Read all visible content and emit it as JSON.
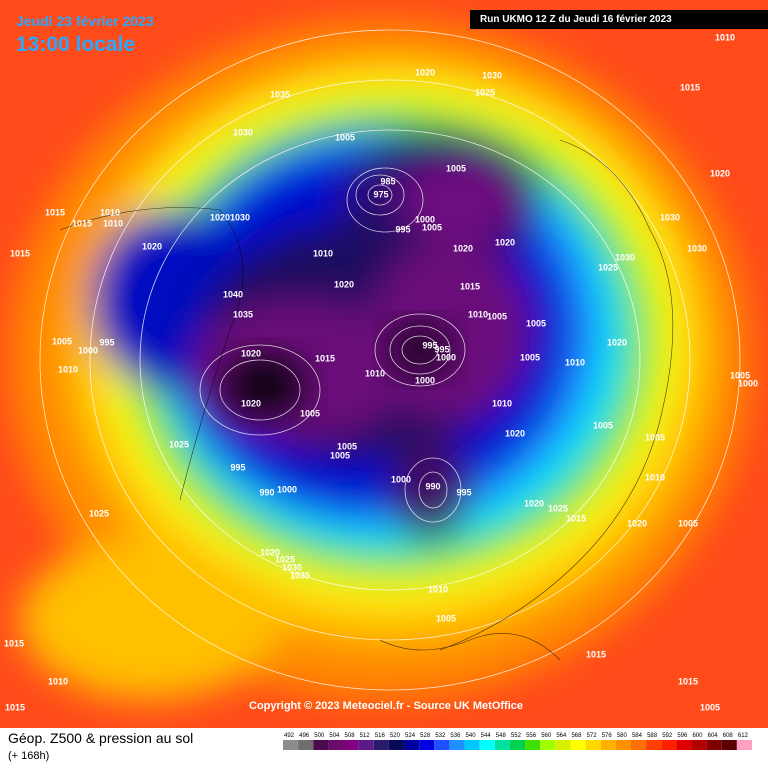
{
  "header": {
    "date": "Jeudi 23 février 2023",
    "time": "13:00 locale",
    "run": "Run UKMO 12 Z du Jeudi 16 février 2023"
  },
  "copyright": "Copyright © 2023 Meteociel.fr - Source UK MetOffice",
  "legend": {
    "title": "Géop. Z500 & pression au sol",
    "subtitle": "(+ 168h)",
    "levels": [
      492,
      496,
      500,
      504,
      508,
      512,
      516,
      520,
      524,
      528,
      532,
      536,
      540,
      544,
      548,
      552,
      556,
      560,
      564,
      568,
      572,
      576,
      580,
      584,
      588,
      592,
      596,
      600,
      604,
      608,
      612
    ]
  },
  "pressure_labels": [
    "1035",
    "1030",
    "1020",
    "1030",
    "1025",
    "1010",
    "1015",
    "1005",
    "1005",
    "985",
    "975",
    "1000",
    "995",
    "1005",
    "1020",
    "1015",
    "1010",
    "1015",
    "1010",
    "1020",
    "1030",
    "1020",
    "1010",
    "1020",
    "1020",
    "1030",
    "1030",
    "1030",
    "1025",
    "1015",
    "1020",
    "1015",
    "1040",
    "1035",
    "1010",
    "1005",
    "1005",
    "1020",
    "1005",
    "1000",
    "995",
    "1020",
    "1015",
    "995",
    "995",
    "1000",
    "1005",
    "1010",
    "1010",
    "1010",
    "1000",
    "1020",
    "1010",
    "1005",
    "1005",
    "1020",
    "1025",
    "1005",
    "1005",
    "1005",
    "995",
    "1000",
    "990",
    "995",
    "1010",
    "990",
    "1000",
    "1025",
    "1020",
    "1015",
    "1025",
    "1020",
    "1005",
    "1020",
    "1025",
    "1030",
    "1035",
    "1010",
    "1005",
    "1015",
    "1015",
    "1010",
    "1015",
    "1015",
    "1005",
    "1005",
    "1000"
  ]
}
